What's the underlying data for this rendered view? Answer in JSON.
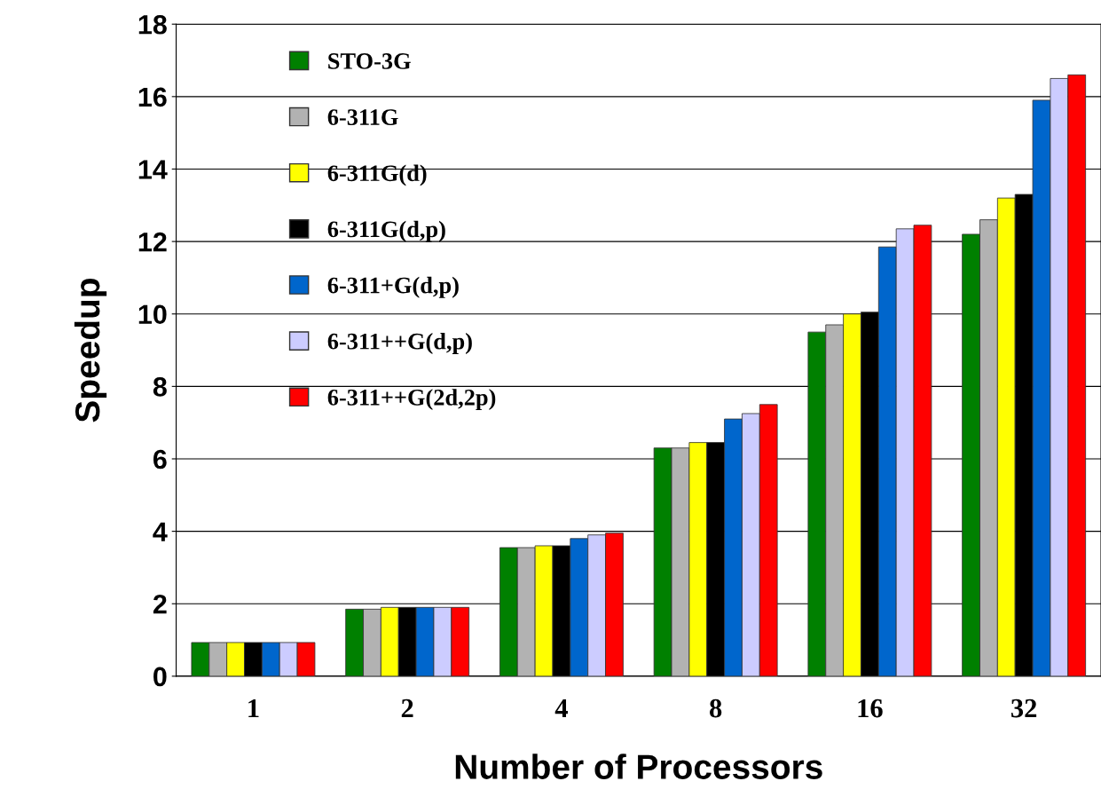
{
  "chart_data": {
    "type": "bar",
    "xlabel": "Number of Processors",
    "ylabel": "Speedup",
    "categories": [
      "1",
      "2",
      "4",
      "8",
      "16",
      "32"
    ],
    "ylim": [
      0,
      18
    ],
    "yticks": [
      0,
      2,
      4,
      6,
      8,
      10,
      12,
      14,
      16,
      18
    ],
    "grid": "y",
    "legend": "top left",
    "series": [
      {
        "name": "STO-3G",
        "color": "#008000",
        "values": [
          0.93,
          1.85,
          3.55,
          6.3,
          9.5,
          12.2
        ]
      },
      {
        "name": "6-311G",
        "color": "#b2b2b2",
        "values": [
          0.93,
          1.85,
          3.55,
          6.3,
          9.7,
          12.6
        ]
      },
      {
        "name": "6-311G(d)",
        "color": "#ffff00",
        "values": [
          0.93,
          1.9,
          3.6,
          6.45,
          10.0,
          13.2
        ]
      },
      {
        "name": "6-311G(d,p)",
        "color": "#000000",
        "values": [
          0.93,
          1.9,
          3.6,
          6.45,
          10.05,
          13.3
        ]
      },
      {
        "name": "6-311+G(d,p)",
        "color": "#0066cc",
        "values": [
          0.93,
          1.9,
          3.8,
          7.1,
          11.85,
          15.9
        ]
      },
      {
        "name": "6-311++G(d,p)",
        "color": "#ccccff",
        "values": [
          0.93,
          1.9,
          3.9,
          7.25,
          12.35,
          16.5
        ]
      },
      {
        "name": "6-311++G(2d,2p)",
        "color": "#ff0000",
        "values": [
          0.93,
          1.9,
          3.95,
          7.5,
          12.45,
          16.6
        ]
      }
    ]
  }
}
